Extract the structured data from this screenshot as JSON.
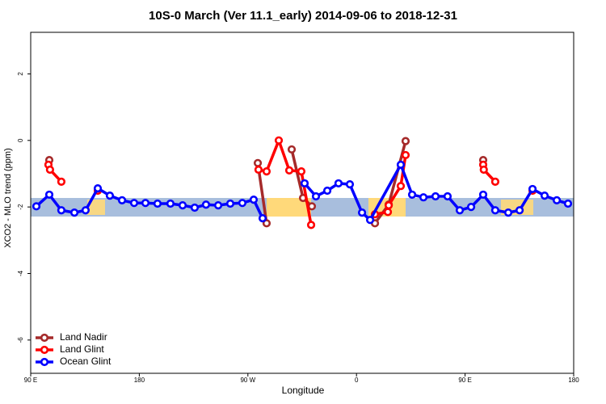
{
  "chart_data": {
    "type": "line",
    "title": "10S-0 March (Ver 11.1_early)   2014-09-06 to 2018-12-31",
    "x_label": "Longitude",
    "y_label": "XCO2 - MLO trend (ppm)",
    "xlim": [
      90,
      540
    ],
    "ylim": [
      -7,
      3.25
    ],
    "xticks": [
      {
        "value": 90,
        "label": "90 E"
      },
      180,
      {
        "value": 270,
        "label": "90 W"
      },
      {
        "value": 360,
        "label": "0"
      },
      {
        "value": 450,
        "label": "90 E"
      },
      {
        "value": 540,
        "label": "180"
      }
    ],
    "yticks": [
      -6,
      -4,
      -2,
      0,
      2
    ],
    "legend": "bottom-left",
    "series": [
      {
        "name": "Land Nadir",
        "color": "#a52a2a",
        "x": [
          105.4,
          null,
          278.2,
          285.5,
          null,
          306.3,
          315.7,
          323,
          null,
          375.3,
          386.7,
          400.7,
          null,
          465
        ],
        "values": [
          -0.59,
          null,
          -0.68,
          -2.49,
          null,
          -0.27,
          -1.73,
          -1.98,
          null,
          -2.49,
          -1.93,
          -0.02,
          null,
          -0.59
        ]
      },
      {
        "name": "Land Glint",
        "color": "#ff0000",
        "x": [
          104.7,
          106,
          115.4,
          null,
          145.6,
          null,
          278.8,
          285.5,
          295.6,
          304.3,
          314.3,
          322.4,
          null,
          375.3,
          386,
          386.7,
          396.7,
          400.7,
          null,
          465,
          465.5,
          475,
          null,
          505.9
        ],
        "values": [
          -0.73,
          -0.88,
          -1.24,
          null,
          -1.51,
          null,
          -0.88,
          -0.93,
          0,
          -0.9,
          -0.93,
          -2.54,
          null,
          -2.22,
          -2.15,
          -1.95,
          -1.37,
          -0.44,
          null,
          -0.73,
          -0.88,
          -1.24,
          null,
          -1.51
        ]
      },
      {
        "name": "Ocean Glint",
        "color": "#0000ff",
        "x": [
          94.7,
          105.4,
          115.4,
          126.2,
          135.5,
          145.6,
          155.6,
          165.7,
          175.7,
          185.1,
          195.1,
          205.8,
          215.9,
          225.9,
          235.3,
          245.4,
          255.4,
          265.4,
          274.8,
          282.2,
          null,
          317,
          326.4,
          335.8,
          345.1,
          354.5,
          364.6,
          371.3,
          396.7,
          406.1,
          415.5,
          425.5,
          435.5,
          445.6,
          455,
          465,
          475,
          485.8,
          495.2,
          505.9,
          515.9,
          526,
          535.3
        ],
        "values": [
          -1.98,
          -1.63,
          -2.1,
          -2.17,
          -2.1,
          -1.44,
          -1.66,
          -1.8,
          -1.88,
          -1.88,
          -1.9,
          -1.9,
          -1.95,
          -2.02,
          -1.93,
          -1.95,
          -1.9,
          -1.88,
          -1.78,
          -2.34,
          null,
          -1.29,
          -1.68,
          -1.51,
          -1.29,
          -1.32,
          -2.17,
          -2.39,
          -0.73,
          -1.63,
          -1.71,
          -1.68,
          -1.68,
          -2.1,
          -2,
          -1.63,
          -2.1,
          -2.17,
          -2.1,
          -1.46,
          -1.66,
          -1.8,
          -1.9
        ]
      }
    ]
  }
}
